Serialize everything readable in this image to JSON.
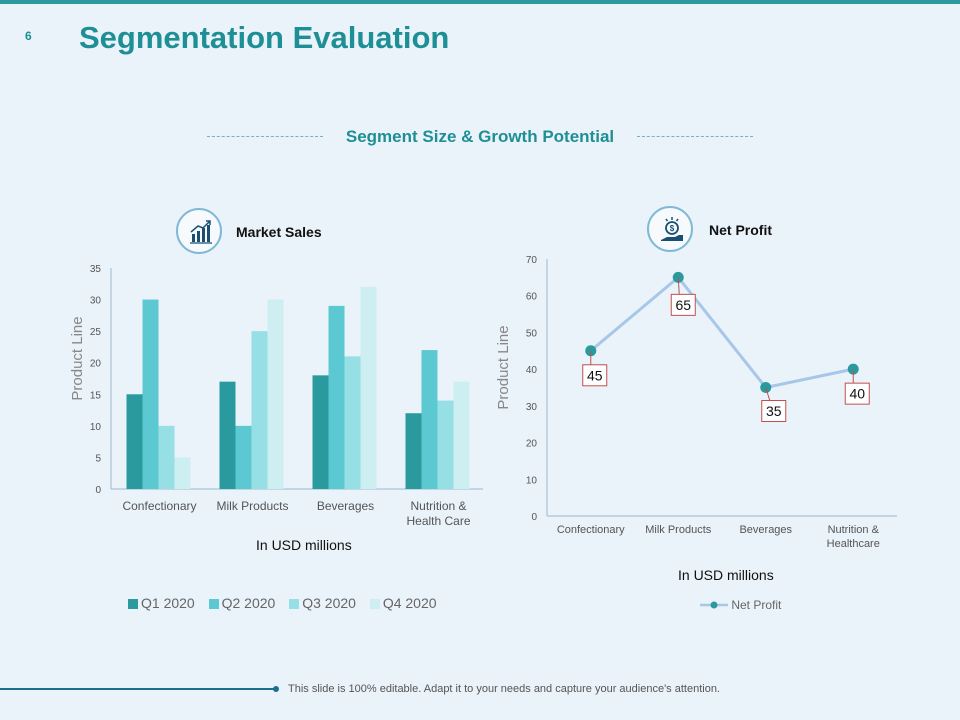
{
  "slide": {
    "number": "6",
    "title": "Segmentation Evaluation",
    "subtitle": "Segment Size & Growth Potential",
    "footer": "This slide is 100% editable. Adapt it to your needs and capture your audience's attention."
  },
  "colors": {
    "accent": "#1e8f95",
    "q1": "#2a9a9e",
    "q2": "#5cc9d2",
    "q3": "#96dfe4",
    "q4": "#cdeff1",
    "line": "#a7c7e8",
    "marker": "#2a9a9e"
  },
  "chart_data": [
    {
      "type": "bar",
      "title": "Market Sales",
      "icon": "growth-chart-icon",
      "categories": [
        "Confectionary",
        "Milk Products",
        "Beverages",
        "Nutrition & Health Care"
      ],
      "series": [
        {
          "name": "Q1 2020",
          "values": [
            15,
            17,
            18,
            12
          ]
        },
        {
          "name": "Q2 2020",
          "values": [
            30,
            10,
            29,
            22
          ]
        },
        {
          "name": "Q3 2020",
          "values": [
            10,
            25,
            21,
            14
          ]
        },
        {
          "name": "Q4 2020",
          "values": [
            5,
            30,
            32,
            17
          ]
        }
      ],
      "ylim": [
        0,
        35
      ],
      "yticks": [
        0,
        5,
        10,
        15,
        20,
        25,
        30,
        35
      ],
      "ylabel": "Product Line",
      "xlabel": "In USD millions",
      "legend": "bottom"
    },
    {
      "type": "line",
      "title": "Net Profit",
      "icon": "money-hand-icon",
      "categories": [
        "Confectionary",
        "Milk Products",
        "Beverages",
        "Nutrition & Healthcare"
      ],
      "series": [
        {
          "name": "Net Profit",
          "values": [
            45,
            65,
            35,
            40
          ]
        }
      ],
      "ylim": [
        0,
        70
      ],
      "yticks": [
        0,
        10,
        20,
        30,
        40,
        50,
        60,
        70
      ],
      "ylabel": "Product Line",
      "xlabel": "In USD millions",
      "legend": "bottom"
    }
  ]
}
